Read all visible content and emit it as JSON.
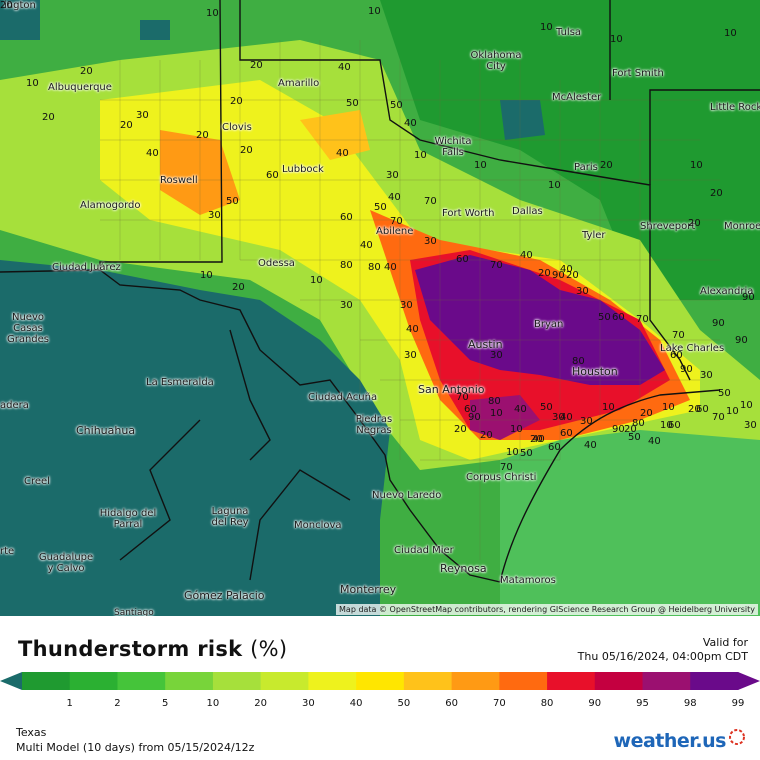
{
  "map": {
    "attribution": "Map data © OpenStreetMap contributors, rendering GIScience Research Group @ Heidelberg University",
    "cities": [
      {
        "name": "Albuquerque"
      },
      {
        "name": "Amarillo"
      },
      {
        "name": "Oklahoma City"
      },
      {
        "name": "Tulsa"
      },
      {
        "name": "Fort Smith"
      },
      {
        "name": "McAlester"
      },
      {
        "name": "Little Rock"
      },
      {
        "name": "Clovis"
      },
      {
        "name": "Wichita Falls"
      },
      {
        "name": "Paris"
      },
      {
        "name": "Lubbock"
      },
      {
        "name": "Roswell"
      },
      {
        "name": "Alamogordo"
      },
      {
        "name": "Fort Worth"
      },
      {
        "name": "Dallas"
      },
      {
        "name": "Shreveport"
      },
      {
        "name": "Monroe"
      },
      {
        "name": "Abilene"
      },
      {
        "name": "Tyler"
      },
      {
        "name": "Ciudad Juárez"
      },
      {
        "name": "Odessa"
      },
      {
        "name": "Alexandria"
      },
      {
        "name": "Nuevo Casas Grandes"
      },
      {
        "name": "Bryan"
      },
      {
        "name": "Lake Charles"
      },
      {
        "name": "Austin"
      },
      {
        "name": "Houston"
      },
      {
        "name": "La Esmeralda"
      },
      {
        "name": "San Antonio"
      },
      {
        "name": "Ciudad Acuña"
      },
      {
        "name": "Piedras Negras"
      },
      {
        "name": "adera"
      },
      {
        "name": "Chihuahua"
      },
      {
        "name": "Creel"
      },
      {
        "name": "Corpus Christi"
      },
      {
        "name": "Nuevo Laredo"
      },
      {
        "name": "Hidalgo del Parral"
      },
      {
        "name": "Laguna del Rey"
      },
      {
        "name": "Monclova"
      },
      {
        "name": "Ciudad Mier"
      },
      {
        "name": "Guadalupe y Calvo"
      },
      {
        "name": "Reynosa"
      },
      {
        "name": "Matamoros"
      },
      {
        "name": "Monterrey"
      },
      {
        "name": "Gómez Palacio"
      },
      {
        "name": "Santiago"
      },
      {
        "name": "rte"
      },
      {
        "name": "ington"
      }
    ],
    "contour_labels": [
      "10",
      "10",
      "10",
      "10",
      "10",
      "20",
      "20",
      "10",
      "20",
      "20",
      "20",
      "20",
      "20",
      "30",
      "40",
      "40",
      "50",
      "50",
      "40",
      "40",
      "10",
      "10",
      "10",
      "20",
      "10",
      "20",
      "20",
      "30",
      "40",
      "50",
      "60",
      "70",
      "60",
      "70",
      "50",
      "30",
      "40",
      "30",
      "80",
      "40",
      "60",
      "70",
      "40",
      "80",
      "10",
      "20",
      "10",
      "30",
      "30",
      "40",
      "20",
      "90",
      "20",
      "30",
      "50",
      "60",
      "70",
      "70",
      "40",
      "30",
      "80",
      "60",
      "90",
      "90",
      "90",
      "90",
      "30",
      "20",
      "10",
      "10",
      "20",
      "60",
      "40",
      "10",
      "20",
      "10",
      "20",
      "60",
      "80",
      "90",
      "50",
      "40",
      "70",
      "50",
      "40",
      "60",
      "30",
      "20",
      "10",
      "90",
      "80",
      "40",
      "70",
      "60",
      "50",
      "40",
      "30",
      "20",
      "10",
      "60",
      "70",
      "50",
      "30",
      "10",
      "10",
      "30",
      "20"
    ]
  },
  "legend": {
    "title": "Thunderstorm risk",
    "unit": "(%)",
    "valid_label": "Valid for",
    "valid_time": "Thu 05/16/2024, 04:00pm CDT",
    "colors": [
      "#1f9a30",
      "#2bb032",
      "#45c43a",
      "#78d43a",
      "#a6e03b",
      "#c8ea2d",
      "#eef21d",
      "#ffe600",
      "#ffc21a",
      "#ff9a14",
      "#ff6a10",
      "#e8102a",
      "#c40040",
      "#9b1070",
      "#6a0a8a"
    ],
    "ticks": [
      "1",
      "2",
      "5",
      "10",
      "20",
      "30",
      "40",
      "50",
      "60",
      "70",
      "80",
      "90",
      "95",
      "98",
      "99"
    ],
    "region": "Texas",
    "model": "Multi Model (10 days) from 05/15/2024/12z"
  },
  "brand": {
    "name": "weather.us"
  }
}
